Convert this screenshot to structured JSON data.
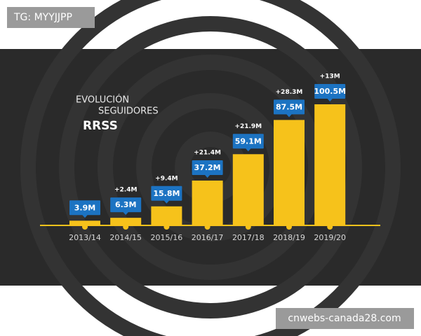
{
  "chart_data": {
    "type": "bar",
    "title": [
      "EVOLUCIÓN",
      "SEGUIDORES",
      "RRSS"
    ],
    "categories": [
      "2013/14",
      "2014/15",
      "2015/16",
      "2016/17",
      "2017/18",
      "2018/19",
      "2019/20"
    ],
    "values": [
      3.9,
      6.3,
      15.8,
      37.2,
      59.1,
      87.5,
      100.5
    ],
    "value_labels": [
      "3.9M",
      "6.3M",
      "15.8M",
      "37.2M",
      "59.1M",
      "87.5M",
      "100.5M"
    ],
    "increments": {
      "values": [
        null,
        2.4,
        9.4,
        21.4,
        21.9,
        28.3,
        13
      ],
      "value_labels": [
        null,
        "+2.4M",
        "+9.4M",
        "+21.4M",
        "+21.9M",
        "+28.3M",
        "+13M"
      ]
    },
    "color": "#f6c21b",
    "label_color": "#1c73c2"
  },
  "watermarks": {
    "top_left": "TG: MYYJJPP",
    "bottom_right": "cnwebs-canada28.com"
  }
}
